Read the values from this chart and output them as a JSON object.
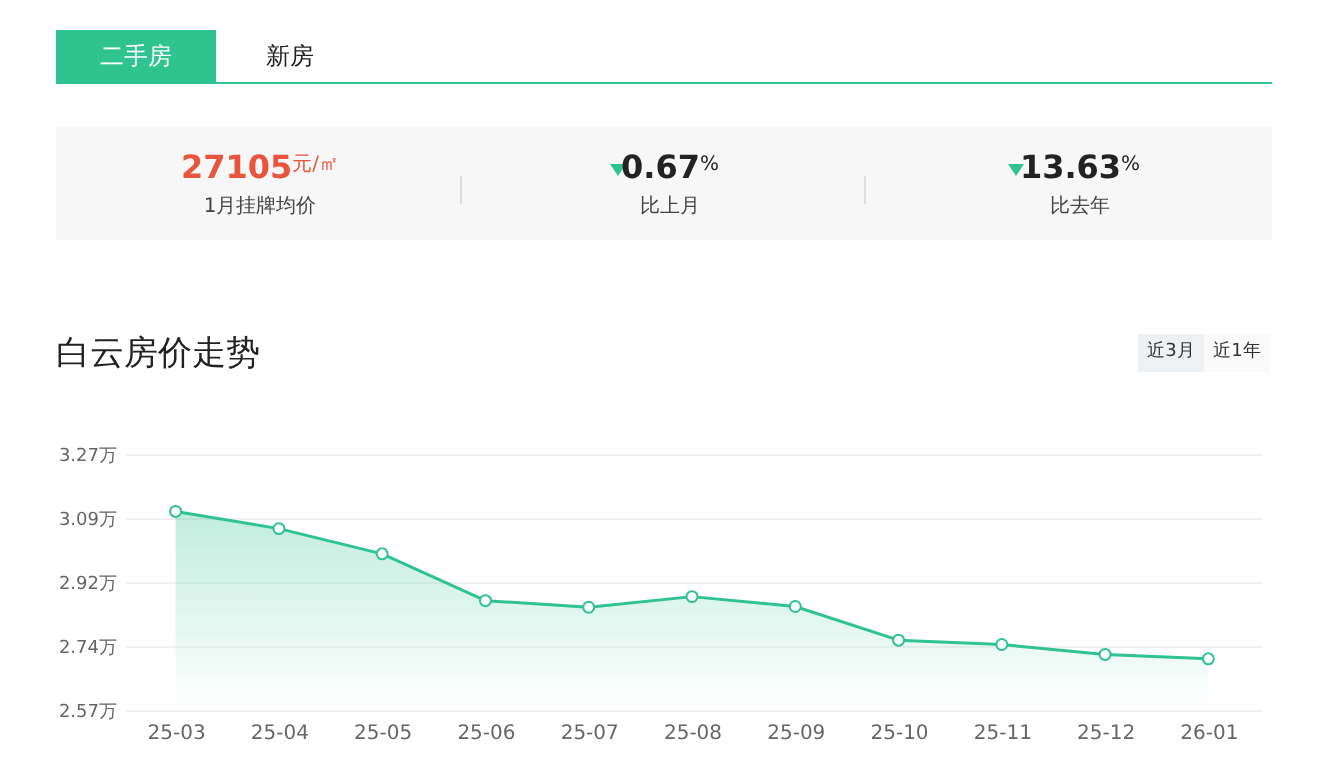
{
  "chart_data": {
    "type": "area",
    "title": "白云房价走势",
    "categories": [
      "25-03",
      "25-04",
      "25-05",
      "25-06",
      "25-07",
      "25-08",
      "25-09",
      "25-10",
      "25-11",
      "25-12",
      "26-01"
    ],
    "series": [
      {
        "color": "#2ec38f",
        "values": [
          3.113,
          3.066,
          2.997,
          2.869,
          2.851,
          2.88,
          2.853,
          2.761,
          2.749,
          2.722,
          2.71
        ]
      }
    ],
    "ylim": [
      2.57,
      3.27
    ],
    "yticks": [
      {
        "value": 2.57,
        "label": "2.57万"
      },
      {
        "value": 2.745,
        "label": "2.74万"
      },
      {
        "value": 2.92,
        "label": "2.92万"
      },
      {
        "value": 3.095,
        "label": "3.09万"
      },
      {
        "value": 3.27,
        "label": "3.27万"
      }
    ],
    "grid": "y",
    "marker": "circle",
    "line_style": "solid",
    "annotations": [
      "二手房",
      "新房",
      "27105$^{元/㎡}$",
      "1月挂牌均价",
      "0.67$^{%}$",
      "比上月",
      "13.63$^{%}$",
      "比去年",
      "近3月",
      "近1年"
    ]
  }
}
